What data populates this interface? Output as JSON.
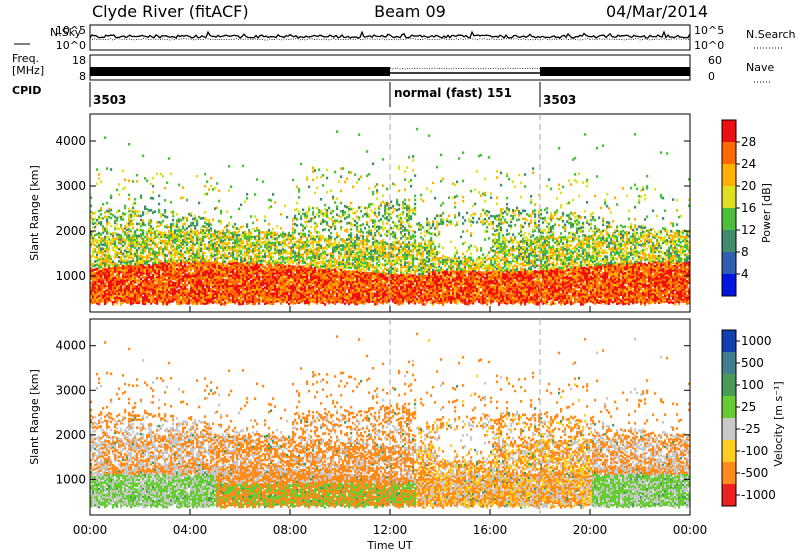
{
  "header": {
    "title": "Clyde River (fitACF)",
    "beam": "Beam 09",
    "date": "04/Mar/2014"
  },
  "top_panel": {
    "nsky_label": "N.Sky",
    "nsearch_label": "N.Search",
    "y_ticks": [
      "10^5",
      "10^0"
    ],
    "right_ticks": [
      "10^5",
      "10^0"
    ]
  },
  "freq_panel": {
    "freq_label": "Freq.",
    "freq_unit": "[MHz]",
    "y_ticks": [
      "18",
      "8"
    ],
    "nave_label": "Nave",
    "nave_ticks": [
      "60",
      "0"
    ]
  },
  "cpid": {
    "label": "CPID",
    "segments": [
      {
        "start_hour": 0,
        "text": "3503"
      },
      {
        "start_hour": 12,
        "text": "normal (fast) 151"
      },
      {
        "start_hour": 18,
        "text": "3503"
      }
    ]
  },
  "chart_data": [
    {
      "type": "heatmap",
      "name": "power",
      "xlabel": "",
      "ylabel": "Slant Range [km]",
      "xlim": [
        0,
        24
      ],
      "ylim": [
        200,
        4600
      ],
      "y_ticks": [
        1000,
        2000,
        3000,
        4000
      ],
      "colorbar": {
        "label": "Power [dB]",
        "range": [
          0,
          32
        ],
        "ticks": [
          4,
          8,
          12,
          16,
          20,
          24,
          28
        ],
        "colors": [
          "#0015e0",
          "#2f5fae",
          "#3f8b6a",
          "#4cbf3a",
          "#e0e020",
          "#ffb000",
          "#ff6a00",
          "#ee1010"
        ]
      }
    },
    {
      "type": "heatmap",
      "name": "velocity",
      "xlabel": "Time UT",
      "ylabel": "Slant Range [km]",
      "xlim": [
        0,
        24
      ],
      "ylim": [
        200,
        4600
      ],
      "y_ticks": [
        1000,
        2000,
        3000,
        4000
      ],
      "x_ticks": [
        "00:00",
        "04:00",
        "08:00",
        "12:00",
        "16:00",
        "20:00",
        "00:00"
      ],
      "colorbar": {
        "label": "Velocity [m s⁻¹]",
        "ticks": [
          "1000",
          "500",
          "100",
          "25",
          "-25",
          "-100",
          "-500",
          "-1000"
        ],
        "colors": [
          "#1040b0",
          "#3f7f8f",
          "#4a9a5a",
          "#66cc33",
          "#c8c8c8",
          "#ffcc22",
          "#ff8c1a",
          "#ee2020"
        ]
      }
    }
  ],
  "colors": {
    "grid_dashed": "#aaaaaa",
    "axis": "#000000"
  }
}
